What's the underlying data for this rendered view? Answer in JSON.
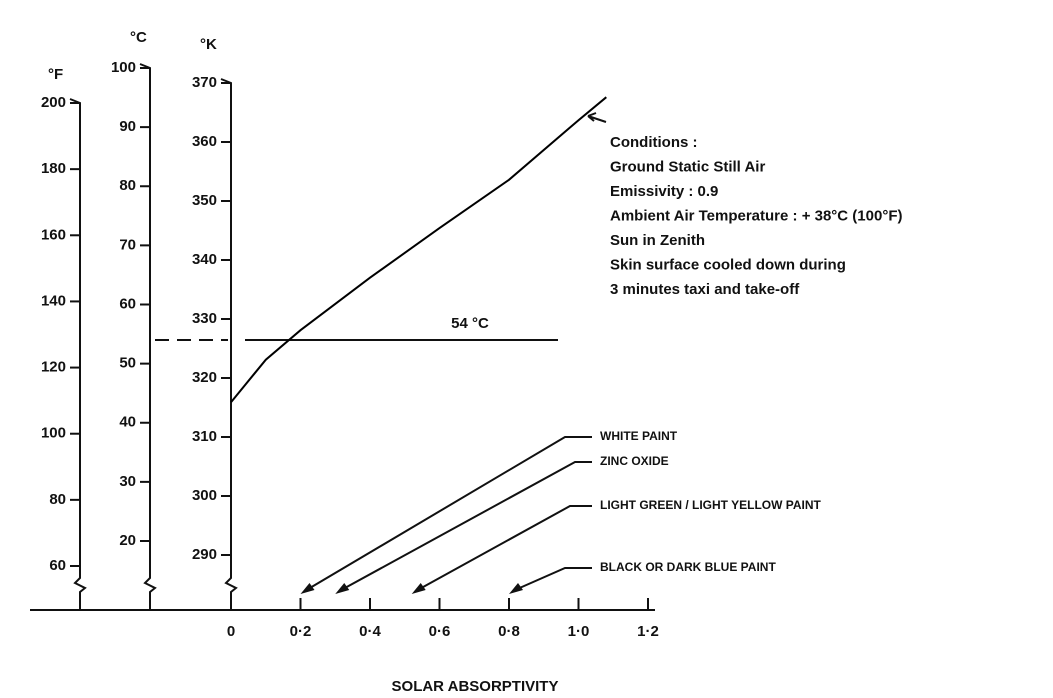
{
  "chart_data": {
    "type": "line",
    "xlabel": "SOLAR ABSORPTIVITY",
    "xlim": [
      0,
      1.2
    ],
    "xticks": [
      0,
      {
        "value": 0.2,
        "label": "0·2"
      },
      {
        "value": 0.4,
        "label": "0·4"
      },
      {
        "value": 0.6,
        "label": "0·6"
      },
      {
        "value": 0.8,
        "label": "0·8"
      },
      {
        "value": 1.0,
        "label": "1·0"
      },
      {
        "value": 1.2,
        "label": "1·2"
      }
    ],
    "y_axes": [
      {
        "label": "°F",
        "lim": [
          60,
          200
        ],
        "ticks": [
          60,
          80,
          100,
          120,
          140,
          160,
          180,
          200
        ]
      },
      {
        "label": "°C",
        "lim": [
          20,
          100
        ],
        "ticks": [
          20,
          30,
          40,
          50,
          60,
          70,
          80,
          90,
          100
        ]
      },
      {
        "label": "°K",
        "lim": [
          290,
          370
        ],
        "ticks": [
          290,
          300,
          310,
          320,
          330,
          340,
          350,
          360,
          370
        ]
      }
    ],
    "series": [
      {
        "axis": 2,
        "color": "#000000",
        "x": [
          0,
          0.1,
          0.2,
          0.4,
          0.6,
          0.8,
          1.0,
          1.08
        ],
        "values": [
          315.9,
          323.1,
          328.1,
          337,
          345.4,
          353.6,
          363.7,
          367.6
        ]
      }
    ],
    "reference": {
      "axis": 1,
      "value": 54,
      "label": "54 °C"
    },
    "conditions": [
      "Conditions :",
      "Ground Static Still Air",
      "Emissivity : 0.9",
      "Ambient Air Temperature : + 38°C (100°F)",
      "Sun in Zenith",
      "Skin surface cooled down during",
      "3 minutes taxi and take-off"
    ],
    "materials": [
      {
        "name": "WHITE PAINT",
        "value": 0.2
      },
      {
        "name": "ZINC OXIDE",
        "value": 0.3
      },
      {
        "name": "LIGHT GREEN / LIGHT YELLOW PAINT",
        "value": 0.52
      },
      {
        "name": "BLACK OR DARK BLUE PAINT",
        "value": 0.8
      }
    ]
  }
}
